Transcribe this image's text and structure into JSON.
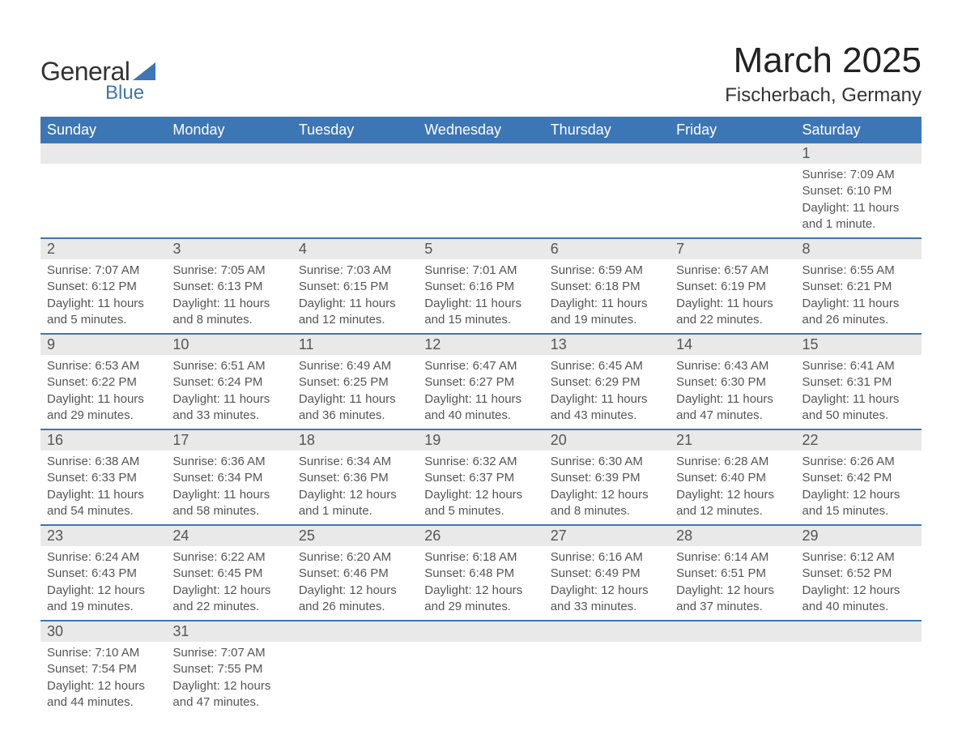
{
  "colors": {
    "header_bg": "#3d76b5",
    "header_text": "#ffffff",
    "daynum_bg": "#e9e9e9",
    "text": "#555555",
    "title_text": "#222222",
    "row_divider": "#3d76b5"
  },
  "fonts": {
    "body_family": "Arial",
    "daynum_size_pt": 14,
    "data_size_pt": 11,
    "title_size_pt": 33,
    "location_size_pt": 18,
    "header_size_pt": 13
  },
  "logo": {
    "line1": "General",
    "line2": "Blue"
  },
  "title": "March 2025",
  "location": "Fischerbach, Germany",
  "day_headers": [
    "Sunday",
    "Monday",
    "Tuesday",
    "Wednesday",
    "Thursday",
    "Friday",
    "Saturday"
  ],
  "weeks": [
    [
      null,
      null,
      null,
      null,
      null,
      null,
      {
        "n": "1",
        "sr": "Sunrise: 7:09 AM",
        "ss": "Sunset: 6:10 PM",
        "dl": "Daylight: 11 hours and 1 minute."
      }
    ],
    [
      {
        "n": "2",
        "sr": "Sunrise: 7:07 AM",
        "ss": "Sunset: 6:12 PM",
        "dl": "Daylight: 11 hours and 5 minutes."
      },
      {
        "n": "3",
        "sr": "Sunrise: 7:05 AM",
        "ss": "Sunset: 6:13 PM",
        "dl": "Daylight: 11 hours and 8 minutes."
      },
      {
        "n": "4",
        "sr": "Sunrise: 7:03 AM",
        "ss": "Sunset: 6:15 PM",
        "dl": "Daylight: 11 hours and 12 minutes."
      },
      {
        "n": "5",
        "sr": "Sunrise: 7:01 AM",
        "ss": "Sunset: 6:16 PM",
        "dl": "Daylight: 11 hours and 15 minutes."
      },
      {
        "n": "6",
        "sr": "Sunrise: 6:59 AM",
        "ss": "Sunset: 6:18 PM",
        "dl": "Daylight: 11 hours and 19 minutes."
      },
      {
        "n": "7",
        "sr": "Sunrise: 6:57 AM",
        "ss": "Sunset: 6:19 PM",
        "dl": "Daylight: 11 hours and 22 minutes."
      },
      {
        "n": "8",
        "sr": "Sunrise: 6:55 AM",
        "ss": "Sunset: 6:21 PM",
        "dl": "Daylight: 11 hours and 26 minutes."
      }
    ],
    [
      {
        "n": "9",
        "sr": "Sunrise: 6:53 AM",
        "ss": "Sunset: 6:22 PM",
        "dl": "Daylight: 11 hours and 29 minutes."
      },
      {
        "n": "10",
        "sr": "Sunrise: 6:51 AM",
        "ss": "Sunset: 6:24 PM",
        "dl": "Daylight: 11 hours and 33 minutes."
      },
      {
        "n": "11",
        "sr": "Sunrise: 6:49 AM",
        "ss": "Sunset: 6:25 PM",
        "dl": "Daylight: 11 hours and 36 minutes."
      },
      {
        "n": "12",
        "sr": "Sunrise: 6:47 AM",
        "ss": "Sunset: 6:27 PM",
        "dl": "Daylight: 11 hours and 40 minutes."
      },
      {
        "n": "13",
        "sr": "Sunrise: 6:45 AM",
        "ss": "Sunset: 6:29 PM",
        "dl": "Daylight: 11 hours and 43 minutes."
      },
      {
        "n": "14",
        "sr": "Sunrise: 6:43 AM",
        "ss": "Sunset: 6:30 PM",
        "dl": "Daylight: 11 hours and 47 minutes."
      },
      {
        "n": "15",
        "sr": "Sunrise: 6:41 AM",
        "ss": "Sunset: 6:31 PM",
        "dl": "Daylight: 11 hours and 50 minutes."
      }
    ],
    [
      {
        "n": "16",
        "sr": "Sunrise: 6:38 AM",
        "ss": "Sunset: 6:33 PM",
        "dl": "Daylight: 11 hours and 54 minutes."
      },
      {
        "n": "17",
        "sr": "Sunrise: 6:36 AM",
        "ss": "Sunset: 6:34 PM",
        "dl": "Daylight: 11 hours and 58 minutes."
      },
      {
        "n": "18",
        "sr": "Sunrise: 6:34 AM",
        "ss": "Sunset: 6:36 PM",
        "dl": "Daylight: 12 hours and 1 minute."
      },
      {
        "n": "19",
        "sr": "Sunrise: 6:32 AM",
        "ss": "Sunset: 6:37 PM",
        "dl": "Daylight: 12 hours and 5 minutes."
      },
      {
        "n": "20",
        "sr": "Sunrise: 6:30 AM",
        "ss": "Sunset: 6:39 PM",
        "dl": "Daylight: 12 hours and 8 minutes."
      },
      {
        "n": "21",
        "sr": "Sunrise: 6:28 AM",
        "ss": "Sunset: 6:40 PM",
        "dl": "Daylight: 12 hours and 12 minutes."
      },
      {
        "n": "22",
        "sr": "Sunrise: 6:26 AM",
        "ss": "Sunset: 6:42 PM",
        "dl": "Daylight: 12 hours and 15 minutes."
      }
    ],
    [
      {
        "n": "23",
        "sr": "Sunrise: 6:24 AM",
        "ss": "Sunset: 6:43 PM",
        "dl": "Daylight: 12 hours and 19 minutes."
      },
      {
        "n": "24",
        "sr": "Sunrise: 6:22 AM",
        "ss": "Sunset: 6:45 PM",
        "dl": "Daylight: 12 hours and 22 minutes."
      },
      {
        "n": "25",
        "sr": "Sunrise: 6:20 AM",
        "ss": "Sunset: 6:46 PM",
        "dl": "Daylight: 12 hours and 26 minutes."
      },
      {
        "n": "26",
        "sr": "Sunrise: 6:18 AM",
        "ss": "Sunset: 6:48 PM",
        "dl": "Daylight: 12 hours and 29 minutes."
      },
      {
        "n": "27",
        "sr": "Sunrise: 6:16 AM",
        "ss": "Sunset: 6:49 PM",
        "dl": "Daylight: 12 hours and 33 minutes."
      },
      {
        "n": "28",
        "sr": "Sunrise: 6:14 AM",
        "ss": "Sunset: 6:51 PM",
        "dl": "Daylight: 12 hours and 37 minutes."
      },
      {
        "n": "29",
        "sr": "Sunrise: 6:12 AM",
        "ss": "Sunset: 6:52 PM",
        "dl": "Daylight: 12 hours and 40 minutes."
      }
    ],
    [
      {
        "n": "30",
        "sr": "Sunrise: 7:10 AM",
        "ss": "Sunset: 7:54 PM",
        "dl": "Daylight: 12 hours and 44 minutes."
      },
      {
        "n": "31",
        "sr": "Sunrise: 7:07 AM",
        "ss": "Sunset: 7:55 PM",
        "dl": "Daylight: 12 hours and 47 minutes."
      },
      null,
      null,
      null,
      null,
      null
    ]
  ]
}
